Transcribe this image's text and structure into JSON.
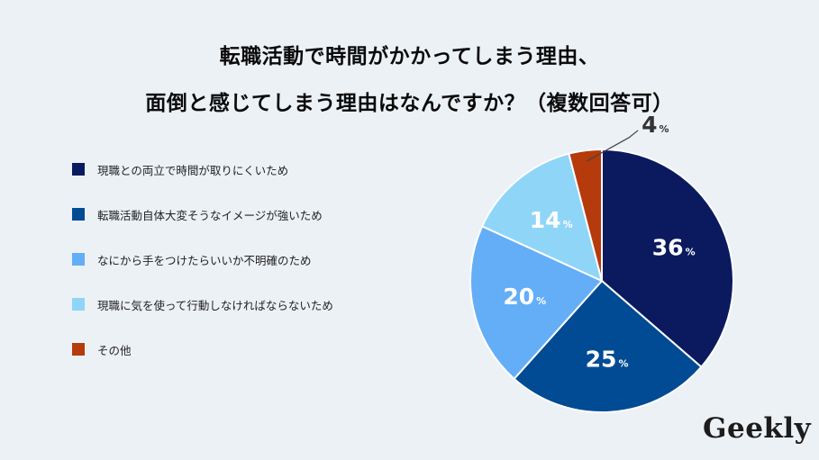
{
  "title": {
    "line1": "転職活動で時間がかかってしまう理由、",
    "line2": "面倒と感じてしまう理由はなんですか？（複数回答可）"
  },
  "chart_data": {
    "type": "pie",
    "unit": "%",
    "legend_position": "left",
    "slices": [
      {
        "label": "現職との両立で時間が取りにくいため",
        "value": 36,
        "color": "#0b1a5e"
      },
      {
        "label": "転職活動自体大変そうなイメージが強いため",
        "value": 25,
        "color": "#004b93"
      },
      {
        "label": "なにから手をつけたらいいか不明確のため",
        "value": 20,
        "color": "#63aef6"
      },
      {
        "label": "現職に気を使って行動しなければならないため",
        "value": 14,
        "color": "#8fd5f8"
      },
      {
        "label": "その他",
        "value": 4,
        "color": "#b53a0c"
      }
    ]
  },
  "brand": {
    "logo_text": "Geekly"
  }
}
